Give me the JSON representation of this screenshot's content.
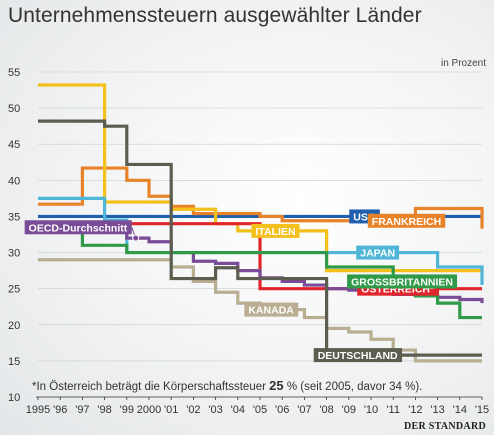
{
  "header": {
    "title": "Unternehmenssteuern ausgewählter Länder",
    "unit": "in Prozent"
  },
  "footnote": {
    "prefix": "*In Österreich beträgt die Körperschaftssteuer",
    "value": "25",
    "suffix": "% (seit 2005, davor 34 %)."
  },
  "source": "DER STANDARD",
  "chart_data": {
    "type": "line",
    "title": "Unternehmenssteuern ausgewählter Länder",
    "ylabel": "in Prozent",
    "xlabel": "",
    "ylim": [
      10,
      55
    ],
    "yticks": [
      10,
      15,
      20,
      25,
      30,
      35,
      40,
      45,
      50,
      55
    ],
    "x_tick_labels": [
      "1995",
      "'96",
      "'97",
      "'98",
      "'99",
      "2000",
      "'01",
      "'02",
      "'03",
      "'04",
      "'05",
      "'06",
      "'07",
      "'08",
      "'09",
      "'10",
      "'11",
      "'12",
      "'13",
      "'14",
      "'15"
    ],
    "x": [
      1995,
      1996,
      1997,
      1998,
      1999,
      2000,
      2001,
      2002,
      2003,
      2004,
      2005,
      2006,
      2007,
      2008,
      2009,
      2010,
      2011,
      2012,
      2013,
      2014,
      2015
    ],
    "grid": true,
    "series": [
      {
        "name": "USA",
        "color": "#1f5fae",
        "label_year": 2009.7,
        "values": [
          35,
          35,
          35,
          35,
          35,
          35,
          35,
          35,
          35,
          35,
          35,
          35,
          35,
          35,
          35,
          35,
          35,
          35,
          35,
          35,
          35
        ]
      },
      {
        "name": "FRANKREICH",
        "color": "#e8832a",
        "label_year": 2011.6,
        "values": [
          36.7,
          36.7,
          41.7,
          41.7,
          40,
          37.8,
          36.4,
          35.4,
          35.4,
          35.4,
          35,
          34.4,
          34.4,
          34.4,
          34.4,
          34.4,
          34.4,
          36.1,
          36.1,
          36.1,
          33.3
        ]
      },
      {
        "name": "ITALIEN",
        "color": "#f3c01c",
        "label_year": 2005.7,
        "values": [
          53.2,
          53.2,
          53.2,
          37,
          37,
          37,
          36,
          36,
          34,
          33,
          33,
          33,
          33,
          27.5,
          27.5,
          27.5,
          27.5,
          27.5,
          27.5,
          27.5,
          27.5
        ]
      },
      {
        "name": "JAPAN",
        "color": "#4fb6d8",
        "label_year": 2010.3,
        "values": [
          37.5,
          37.5,
          37.5,
          34.5,
          30,
          30,
          30,
          30,
          30,
          30,
          30,
          30,
          30,
          30,
          30,
          30,
          30,
          30,
          28,
          28,
          25.5
        ]
      },
      {
        "name": "ÖSTERREICH*",
        "color": "#e0262c",
        "label_year": 2011.2,
        "values": [
          34,
          34,
          34,
          34,
          34,
          34,
          34,
          34,
          34,
          34,
          25,
          25,
          25,
          25,
          25,
          25,
          25,
          25,
          25,
          25,
          25
        ]
      },
      {
        "name": "OECD-Durchschnitt",
        "color": "#7a4b96",
        "label_year": 1996.8,
        "values": [
          33.5,
          33.5,
          33,
          32.8,
          32,
          31.5,
          30,
          28.8,
          28.5,
          27.5,
          26.5,
          26,
          25.5,
          25,
          24.8,
          24.5,
          24.2,
          24,
          23.8,
          23.5,
          23
        ]
      },
      {
        "name": "KANADA",
        "color": "#b9ad92",
        "label_year": 2005.5,
        "values": [
          29,
          29,
          29,
          29,
          29,
          29,
          28,
          26,
          24.5,
          23,
          22.1,
          22.1,
          21,
          19.5,
          19,
          18,
          16.5,
          15,
          15,
          15,
          15
        ]
      },
      {
        "name": "GROSSBRITANNIEN",
        "color": "#2f9a47",
        "label_year": 2011.4,
        "values": [
          33,
          33,
          31,
          31,
          30,
          30,
          30,
          30,
          30,
          30,
          30,
          30,
          30,
          28,
          28,
          28,
          26,
          24,
          23,
          21,
          21
        ]
      },
      {
        "name": "DEUTSCHLAND",
        "color": "#5b5d4e",
        "label_year": 2009.4,
        "values": [
          48.2,
          48.2,
          48.2,
          47.5,
          42.2,
          42.2,
          26.4,
          26.4,
          27.9,
          26.4,
          26.4,
          26.4,
          26.4,
          15.8,
          15.8,
          15.8,
          15.8,
          15.8,
          15.8,
          15.8,
          15.8
        ]
      }
    ]
  }
}
